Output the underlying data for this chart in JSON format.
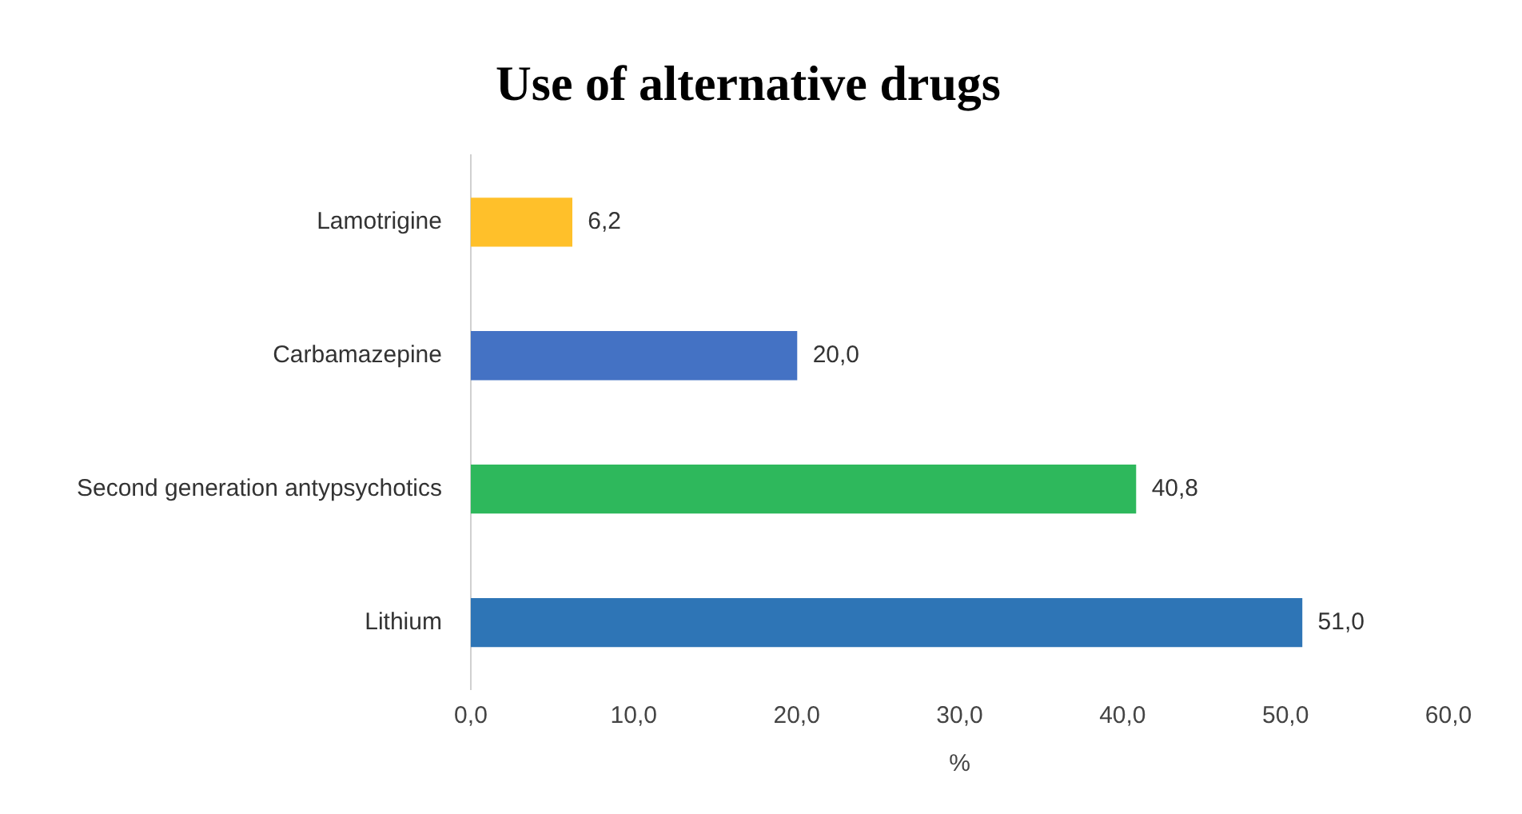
{
  "chart_data": {
    "type": "bar",
    "orientation": "horizontal",
    "title": "Use of alternative drugs",
    "xlabel": "%",
    "categories": [
      "Lamotrigine",
      "Carbamazepine",
      "Second generation antypsychotics",
      "Lithium"
    ],
    "values": [
      6.2,
      20.0,
      40.8,
      51.0
    ],
    "colors": [
      "#ffc02a",
      "#4472c4",
      "#2eb85c",
      "#2e75b6"
    ],
    "value_labels": [
      "6,2",
      "20,0",
      "40,8",
      "51,0"
    ],
    "xlim": [
      0,
      60
    ],
    "xticks": [
      {
        "value": 0,
        "label": "0,0"
      },
      {
        "value": 10,
        "label": "10,0"
      },
      {
        "value": 20,
        "label": "20,0"
      },
      {
        "value": 30,
        "label": "30,0"
      },
      {
        "value": 40,
        "label": "40,0"
      },
      {
        "value": 50,
        "label": "50,0"
      },
      {
        "value": 60,
        "label": "60,0"
      }
    ]
  }
}
